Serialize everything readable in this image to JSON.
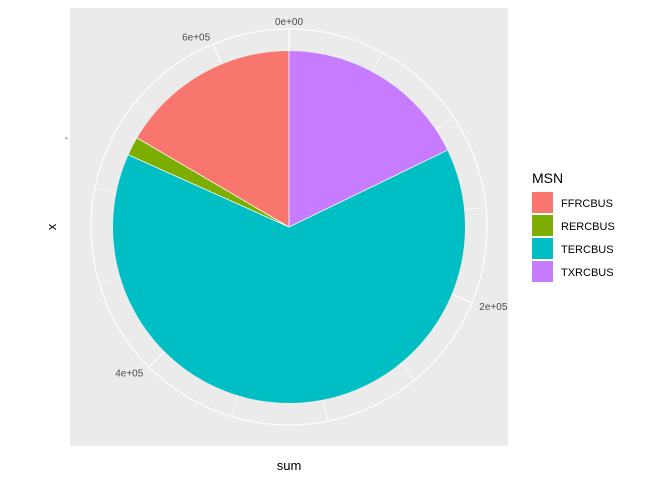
{
  "chart_data": {
    "type": "pie",
    "coord": "polar",
    "xlabel": "sum",
    "ylabel": "x",
    "y_tick_label": "-",
    "theta_range": [
      0,
      640000
    ],
    "theta_ticks": [
      {
        "value": 0,
        "label": "0e+00"
      },
      {
        "value": 200000,
        "label": "2e+05"
      },
      {
        "value": 400000,
        "label": "4e+05"
      },
      {
        "value": 600000,
        "label": "6e+05"
      }
    ],
    "legend_title": "MSN",
    "legend_position": "right",
    "slices": [
      {
        "name": "TXRCBUS",
        "value": 114000,
        "color": "#C77CFF"
      },
      {
        "name": "TERCBUS",
        "value": 409000,
        "color": "#00BFC4"
      },
      {
        "name": "RERCBUS",
        "value": 11000,
        "color": "#7CAE00"
      },
      {
        "name": "FFRCBUS",
        "value": 106000,
        "color": "#F8766D"
      }
    ],
    "legend": [
      {
        "name": "FFRCBUS",
        "color": "#F8766D"
      },
      {
        "name": "RERCBUS",
        "color": "#7CAE00"
      },
      {
        "name": "TERCBUS",
        "color": "#00BFC4"
      },
      {
        "name": "TXRCBUS",
        "color": "#C77CFF"
      }
    ],
    "panel_background": "#EBEBEB",
    "grid_color": "#FFFFFF"
  }
}
